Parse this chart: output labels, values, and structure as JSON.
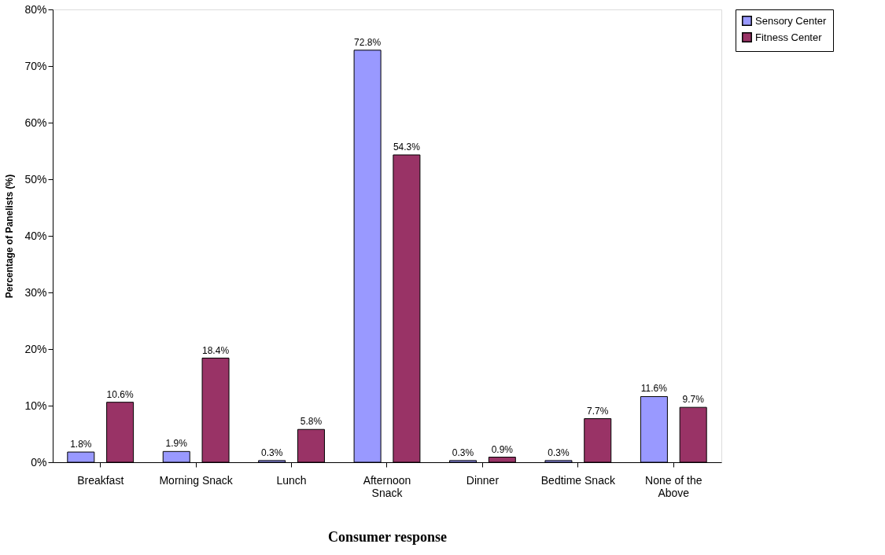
{
  "chart_data": {
    "type": "bar",
    "xlabel": "Consumer response",
    "ylabel": "Percentage of Panelists (%)",
    "categories": [
      "Breakfast",
      "Morning Snack",
      "Lunch",
      "Afternoon Snack",
      "Dinner",
      "Bedtime Snack",
      "None of the Above"
    ],
    "series": [
      {
        "name": "Sensory Center",
        "color": "#9999ff",
        "values": [
          1.8,
          1.9,
          0.3,
          72.8,
          0.3,
          0.3,
          11.6
        ],
        "value_labels": [
          "1.8%",
          "1.9%",
          "0.3%",
          "72.8%",
          "0.3%",
          "0.3%",
          "11.6%"
        ]
      },
      {
        "name": "Fitness Center",
        "color": "#993366",
        "values": [
          10.6,
          18.4,
          5.8,
          54.3,
          0.9,
          7.7,
          9.7
        ],
        "value_labels": [
          "10.6%",
          "18.4%",
          "5.8%",
          "54.3%",
          "0.9%",
          "7.7%",
          "9.7%"
        ]
      }
    ],
    "ylim": [
      0,
      80
    ],
    "yticks": [
      {
        "value": 0,
        "label": "0%"
      },
      {
        "value": 10,
        "label": "10%"
      },
      {
        "value": 20,
        "label": "20%"
      },
      {
        "value": 30,
        "label": "30%"
      },
      {
        "value": 40,
        "label": "40%"
      },
      {
        "value": 50,
        "label": "50%"
      },
      {
        "value": 60,
        "label": "60%"
      },
      {
        "value": 70,
        "label": "70%"
      },
      {
        "value": 80,
        "label": "80%"
      }
    ],
    "grid": false,
    "legend": "right"
  }
}
